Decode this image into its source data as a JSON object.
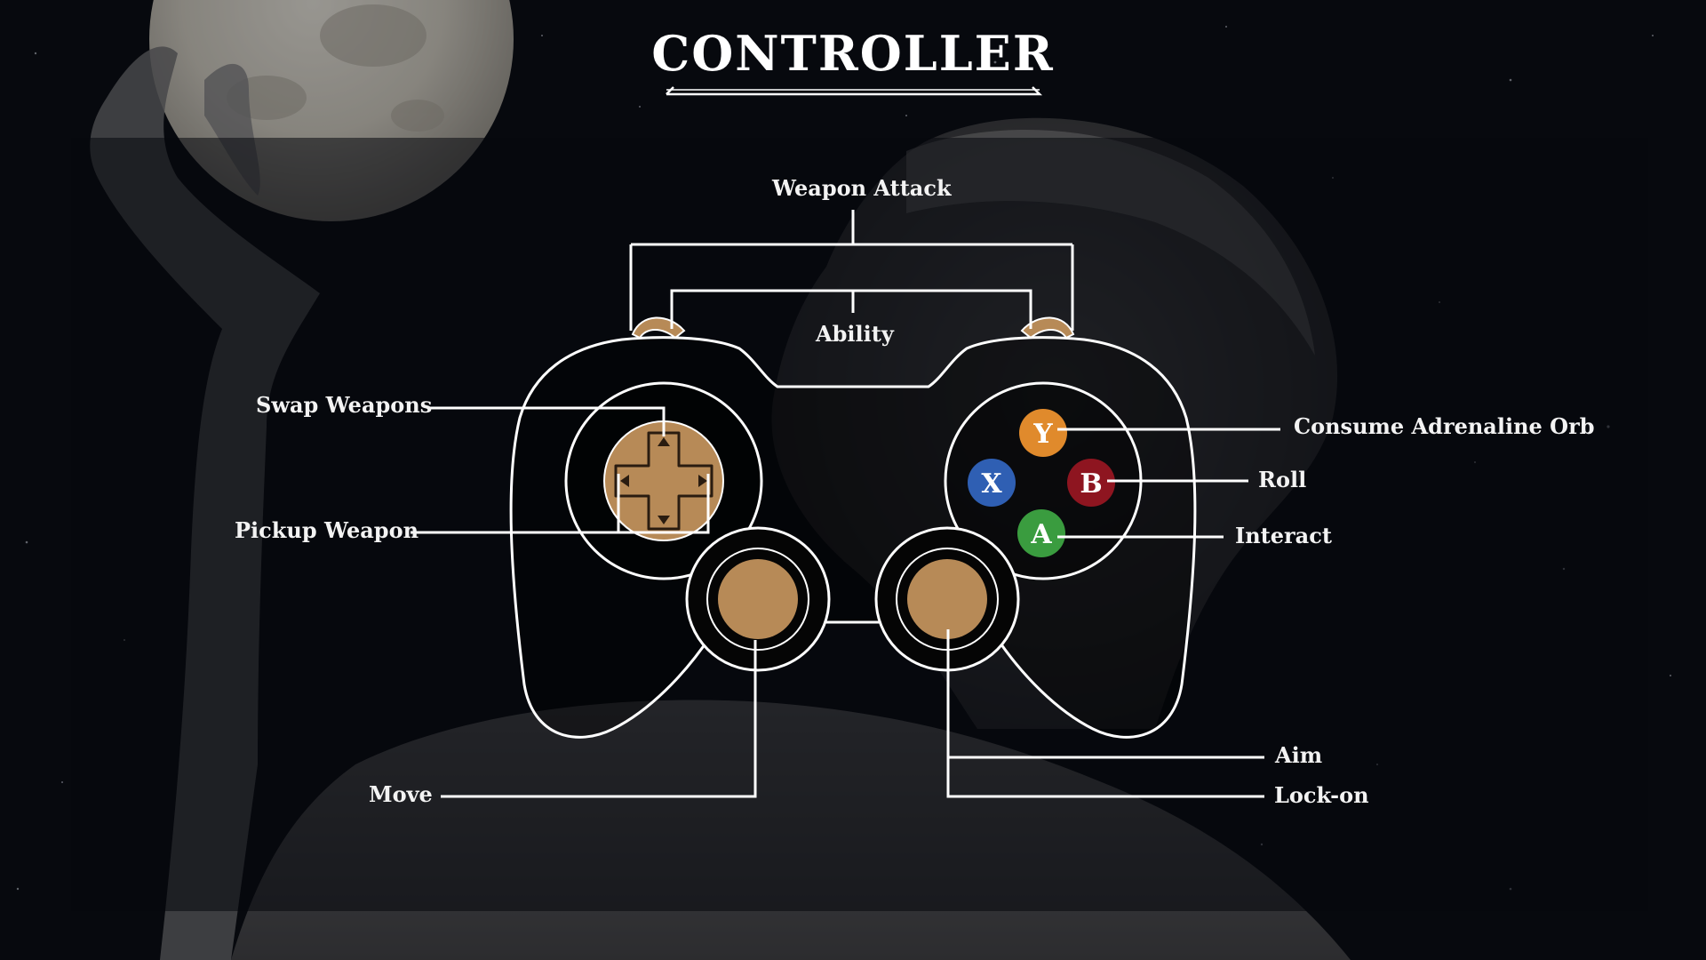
{
  "screen": {
    "title": "CONTROLLER"
  },
  "bindings": {
    "weapon_attack": "Weapon Attack",
    "ability": "Ability",
    "swap_weapons": "Swap Weapons",
    "pickup_weapon": "Pickup Weapon",
    "move": "Move",
    "consume_adrenaline_orb": "Consume Adrenaline Orb",
    "roll": "Roll",
    "interact": "Interact",
    "aim": "Aim",
    "lock_on": "Lock-on"
  },
  "face_buttons": {
    "y": {
      "letter": "Y",
      "color": "#e08a2c"
    },
    "x": {
      "letter": "X",
      "color": "#2f5fb3"
    },
    "b": {
      "letter": "B",
      "color": "#8e1520"
    },
    "a": {
      "letter": "A",
      "color": "#3a9c3f"
    }
  },
  "colors": {
    "accent_bronze": "#b78a57",
    "line": "#ffffff",
    "background": "#0b0e16"
  }
}
